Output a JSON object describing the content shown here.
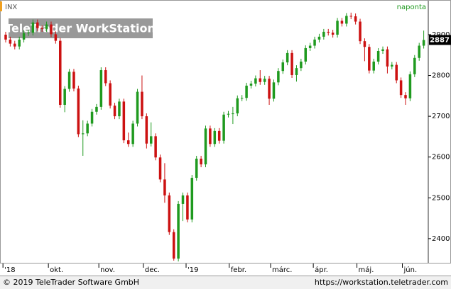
{
  "chart_data": {
    "type": "candlestick",
    "symbol": "INX",
    "interval": "naponta",
    "watermark": "TeleTrader WorkStation",
    "up_color": "#1f9a1f",
    "down_color": "#cc1111",
    "x": [
      0,
      1,
      2,
      3,
      4,
      5,
      6,
      7,
      8,
      9,
      10,
      11,
      12,
      13,
      14,
      15,
      16,
      17,
      18,
      19,
      20,
      21,
      22,
      23,
      24,
      25,
      26,
      27,
      28,
      29,
      30,
      31,
      32,
      33,
      34,
      35,
      36,
      37,
      38,
      39,
      40,
      41,
      42,
      43,
      44,
      45,
      46,
      47,
      48,
      49,
      50,
      51,
      52,
      53,
      54,
      55,
      56,
      57,
      58,
      59,
      60,
      61,
      62,
      63,
      64,
      65,
      66,
      67,
      68,
      69,
      70,
      71,
      72,
      73,
      74,
      75,
      76,
      77,
      78,
      79,
      80,
      81,
      82,
      83,
      84,
      85,
      86,
      87,
      88,
      89,
      90,
      91,
      92
    ],
    "open": [
      2900,
      2888,
      2878,
      2871,
      2888,
      2904,
      2905,
      2930,
      2916,
      2914,
      2925,
      2901,
      2885,
      2728,
      2767,
      2809,
      2768,
      2656,
      2658,
      2682,
      2711,
      2723,
      2813,
      2781,
      2726,
      2700,
      2736,
      2641,
      2632,
      2682,
      2760,
      2700,
      2633,
      2651,
      2599,
      2545,
      2506,
      2416,
      2351,
      2485,
      2506,
      2447,
      2549,
      2596,
      2582,
      2670,
      2632,
      2664,
      2640,
      2704,
      2706,
      2707,
      2744,
      2745,
      2775,
      2780,
      2793,
      2784,
      2792,
      2743,
      2783,
      2811,
      2832,
      2855,
      2801,
      2818,
      2834,
      2867,
      2873,
      2888,
      2895,
      2907,
      2905,
      2900,
      2934,
      2927,
      2946,
      2945,
      2932,
      2884,
      2870,
      2812,
      2834,
      2860,
      2864,
      2822,
      2826,
      2788,
      2752,
      2744,
      2803,
      2843,
      2873
    ],
    "high": [
      2907,
      2895,
      2885,
      2895,
      2911,
      2912,
      2937,
      2937,
      2923,
      2932,
      2932,
      2908,
      2892,
      2774,
      2816,
      2816,
      2775,
      2690,
      2689,
      2718,
      2730,
      2820,
      2820,
      2788,
      2733,
      2743,
      2743,
      2660,
      2689,
      2767,
      2800,
      2707,
      2685,
      2658,
      2606,
      2585,
      2513,
      2423,
      2492,
      2513,
      2513,
      2556,
      2603,
      2603,
      2677,
      2677,
      2671,
      2671,
      2711,
      2713,
      2723,
      2751,
      2752,
      2782,
      2787,
      2800,
      2813,
      2799,
      2799,
      2790,
      2818,
      2839,
      2862,
      2862,
      2825,
      2841,
      2874,
      2880,
      2895,
      2902,
      2914,
      2914,
      2912,
      2941,
      2941,
      2953,
      2954,
      2952,
      2939,
      2891,
      2877,
      2841,
      2867,
      2871,
      2871,
      2833,
      2833,
      2795,
      2759,
      2810,
      2850,
      2880,
      2910
    ],
    "low": [
      2881,
      2871,
      2864,
      2864,
      2881,
      2897,
      2898,
      2909,
      2907,
      2907,
      2894,
      2878,
      2721,
      2710,
      2760,
      2761,
      2649,
      2603,
      2651,
      2675,
      2704,
      2716,
      2774,
      2719,
      2693,
      2693,
      2634,
      2625,
      2625,
      2675,
      2693,
      2621,
      2626,
      2592,
      2538,
      2488,
      2409,
      2346,
      2344,
      2443,
      2440,
      2440,
      2542,
      2575,
      2575,
      2625,
      2625,
      2633,
      2633,
      2697,
      2681,
      2700,
      2737,
      2738,
      2768,
      2773,
      2777,
      2777,
      2728,
      2736,
      2776,
      2804,
      2825,
      2794,
      2785,
      2811,
      2827,
      2860,
      2866,
      2881,
      2888,
      2898,
      2893,
      2893,
      2920,
      2920,
      2938,
      2925,
      2877,
      2835,
      2805,
      2805,
      2827,
      2853,
      2805,
      2815,
      2781,
      2745,
      2728,
      2737,
      2796,
      2836,
      2866
    ],
    "close": [
      2888,
      2878,
      2871,
      2888,
      2904,
      2905,
      2930,
      2916,
      2914,
      2925,
      2901,
      2885,
      2728,
      2767,
      2809,
      2768,
      2656,
      2658,
      2682,
      2711,
      2723,
      2813,
      2781,
      2726,
      2700,
      2736,
      2641,
      2632,
      2682,
      2760,
      2700,
      2633,
      2651,
      2599,
      2545,
      2506,
      2416,
      2351,
      2485,
      2506,
      2447,
      2549,
      2596,
      2582,
      2670,
      2632,
      2664,
      2640,
      2704,
      2706,
      2707,
      2744,
      2745,
      2775,
      2780,
      2793,
      2784,
      2792,
      2743,
      2783,
      2811,
      2832,
      2855,
      2801,
      2818,
      2834,
      2867,
      2873,
      2888,
      2895,
      2907,
      2905,
      2900,
      2934,
      2927,
      2946,
      2945,
      2932,
      2884,
      2870,
      2812,
      2834,
      2860,
      2864,
      2822,
      2826,
      2788,
      2752,
      2744,
      2803,
      2843,
      2873,
      2887
    ],
    "xlim": [
      -1.25,
      93
    ],
    "ylim": [
      2339,
      2985
    ],
    "yticks": [
      2400,
      2500,
      2600,
      2700,
      2800,
      2900
    ],
    "xticks": [
      {
        "value": -0.6,
        "label": "'18"
      },
      {
        "value": 9.4,
        "label": "okt."
      },
      {
        "value": 20.5,
        "label": "nov."
      },
      {
        "value": 30.3,
        "label": "dec."
      },
      {
        "value": 39.7,
        "label": "'19"
      },
      {
        "value": 49.2,
        "label": "febr."
      },
      {
        "value": 58.3,
        "label": "márc."
      },
      {
        "value": 67.7,
        "label": "ápr."
      },
      {
        "value": 77.3,
        "label": "máj."
      },
      {
        "value": 87.3,
        "label": "jún."
      }
    ]
  },
  "footer": {
    "copyright": "© 2019 TeleTrader Software GmbH",
    "url": "https://workstation.teletrader.com"
  }
}
